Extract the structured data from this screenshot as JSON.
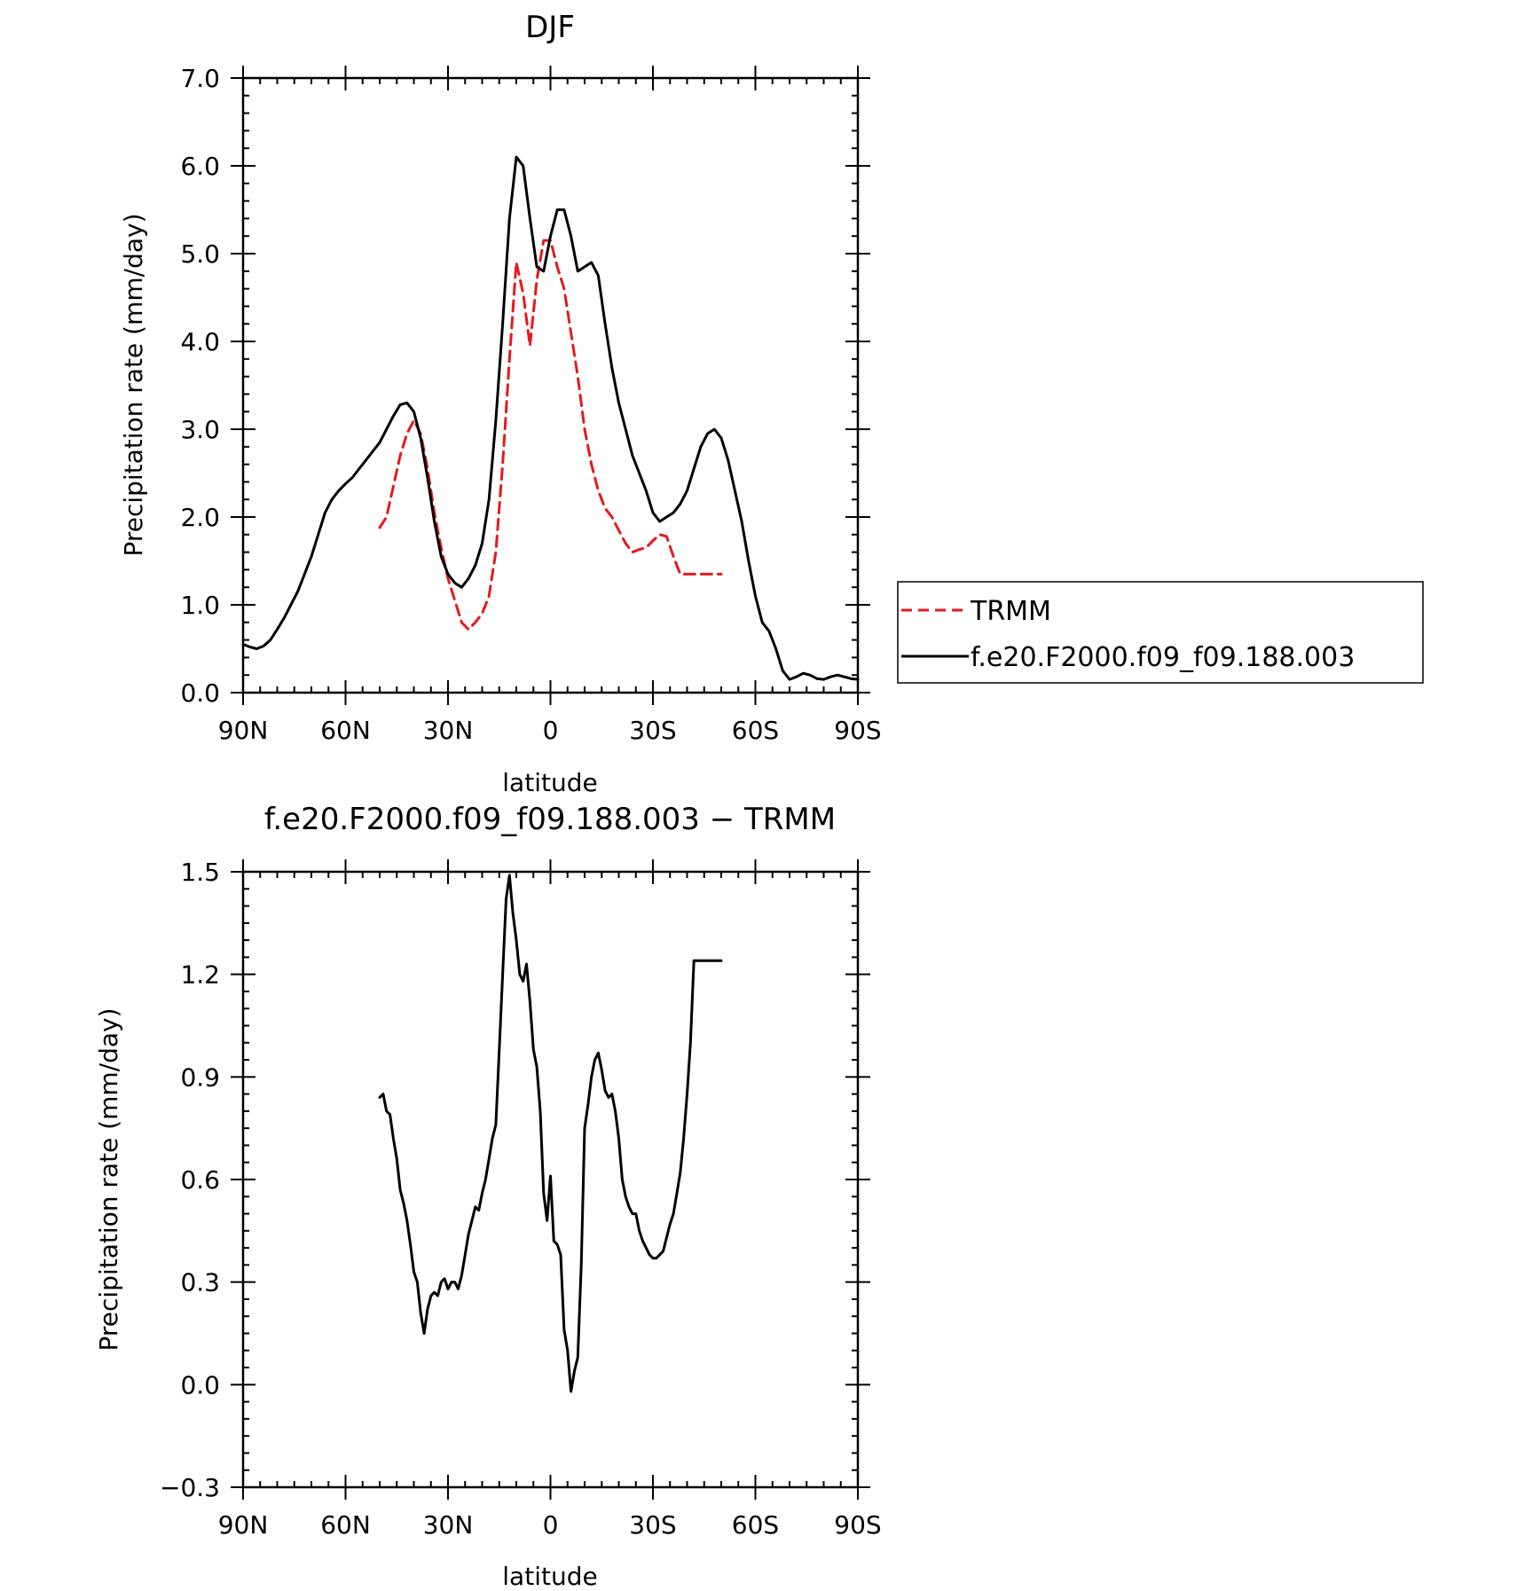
{
  "chart_data": [
    {
      "type": "line",
      "title": "DJF",
      "xlabel": "latitude",
      "ylabel": "Precipitation rate (mm/day)",
      "xlim": [
        90,
        -90
      ],
      "ylim": [
        0,
        7
      ],
      "x_ticks": [
        90,
        60,
        30,
        0,
        -30,
        -60,
        -90
      ],
      "x_tick_labels": [
        "90N",
        "60N",
        "30N",
        "0",
        "30S",
        "60S",
        "90S"
      ],
      "y_ticks": [
        0,
        1,
        2,
        3,
        4,
        5,
        6,
        7
      ],
      "y_tick_labels": [
        "0.0",
        "1.0",
        "2.0",
        "3.0",
        "4.0",
        "5.0",
        "6.0",
        "7.0"
      ],
      "legend_position": "right",
      "series": [
        {
          "name": "TRMM",
          "color": "#e41a1c",
          "dash": "dashed",
          "x": [
            50,
            48,
            46,
            44,
            42,
            40,
            38,
            36,
            34,
            32,
            30,
            28,
            26,
            24,
            22,
            20,
            18,
            16,
            14,
            12,
            10,
            8,
            6,
            4,
            2,
            0,
            -2,
            -4,
            -6,
            -8,
            -10,
            -12,
            -14,
            -16,
            -18,
            -20,
            -22,
            -24,
            -26,
            -28,
            -30,
            -32,
            -34,
            -36,
            -38,
            -40,
            -42,
            -44,
            -46,
            -48,
            -50
          ],
          "y": [
            1.88,
            2.0,
            2.35,
            2.7,
            2.95,
            3.1,
            2.95,
            2.55,
            2.05,
            1.65,
            1.3,
            1.05,
            0.8,
            0.72,
            0.8,
            0.9,
            1.1,
            1.6,
            2.6,
            3.8,
            4.9,
            4.55,
            3.95,
            4.7,
            5.15,
            5.15,
            4.85,
            4.6,
            4.1,
            3.6,
            3.0,
            2.6,
            2.3,
            2.1,
            2.0,
            1.85,
            1.7,
            1.6,
            1.63,
            1.65,
            1.73,
            1.8,
            1.78,
            1.55,
            1.35,
            1.35,
            1.35,
            1.35,
            1.35,
            1.35,
            1.35
          ]
        },
        {
          "name": "f.e20.F2000.f09_f09.188.003",
          "color": "#000000",
          "dash": "solid",
          "x": [
            90,
            88,
            86,
            84,
            82,
            80,
            78,
            76,
            74,
            72,
            70,
            68,
            66,
            64,
            62,
            60,
            58,
            56,
            54,
            52,
            50,
            48,
            46,
            44,
            42,
            40,
            38,
            36,
            34,
            32,
            30,
            28,
            26,
            24,
            22,
            20,
            18,
            16,
            14,
            12,
            10,
            8,
            6,
            4,
            2,
            0,
            -2,
            -4,
            -6,
            -8,
            -10,
            -12,
            -14,
            -16,
            -18,
            -20,
            -22,
            -24,
            -26,
            -28,
            -30,
            -32,
            -34,
            -36,
            -38,
            -40,
            -42,
            -44,
            -46,
            -48,
            -50,
            -52,
            -54,
            -56,
            -58,
            -60,
            -62,
            -64,
            -66,
            -68,
            -70,
            -72,
            -74,
            -76,
            -78,
            -80,
            -82,
            -84,
            -86,
            -88,
            -90
          ],
          "y": [
            0.55,
            0.52,
            0.5,
            0.53,
            0.6,
            0.72,
            0.85,
            1.0,
            1.15,
            1.35,
            1.55,
            1.8,
            2.05,
            2.2,
            2.3,
            2.38,
            2.45,
            2.55,
            2.65,
            2.75,
            2.85,
            3.0,
            3.15,
            3.28,
            3.3,
            3.2,
            2.9,
            2.45,
            1.95,
            1.55,
            1.35,
            1.25,
            1.2,
            1.3,
            1.45,
            1.7,
            2.2,
            3.1,
            4.2,
            5.4,
            6.1,
            6.0,
            5.4,
            4.85,
            4.8,
            5.2,
            5.5,
            5.5,
            5.2,
            4.8,
            4.85,
            4.9,
            4.75,
            4.2,
            3.7,
            3.3,
            3.0,
            2.7,
            2.5,
            2.3,
            2.05,
            1.95,
            2.0,
            2.05,
            2.15,
            2.3,
            2.55,
            2.8,
            2.95,
            3.0,
            2.9,
            2.65,
            2.3,
            1.95,
            1.5,
            1.1,
            0.8,
            0.7,
            0.5,
            0.25,
            0.15,
            0.18,
            0.22,
            0.2,
            0.16,
            0.15,
            0.18,
            0.2,
            0.18,
            0.16,
            0.15
          ]
        }
      ]
    },
    {
      "type": "line",
      "title": "f.e20.F2000.f09_f09.188.003 − TRMM",
      "xlabel": "latitude",
      "ylabel": "Precipitation rate (mm/day)",
      "xlim": [
        90,
        -90
      ],
      "ylim": [
        -0.3,
        1.5
      ],
      "x_ticks": [
        90,
        60,
        30,
        0,
        -30,
        -60,
        -90
      ],
      "x_tick_labels": [
        "90N",
        "60N",
        "30N",
        "0",
        "30S",
        "60S",
        "90S"
      ],
      "y_ticks": [
        -0.3,
        0.0,
        0.3,
        0.6,
        0.9,
        1.2,
        1.5
      ],
      "y_tick_labels": [
        "−0.3",
        "0.0",
        "0.3",
        "0.6",
        "0.9",
        "1.2",
        "1.5"
      ],
      "series": [
        {
          "color": "#000000",
          "dash": "solid",
          "x": [
            50,
            49,
            48,
            47,
            46,
            45,
            44,
            43,
            42,
            41,
            40,
            39,
            38,
            37,
            36,
            35,
            34,
            33,
            32,
            31,
            30,
            29,
            28,
            27,
            26,
            25,
            24,
            23,
            22,
            21,
            20,
            19,
            18,
            17,
            16,
            15,
            14,
            13,
            12,
            11,
            10,
            9,
            8,
            7,
            6,
            5,
            4,
            3,
            2,
            1,
            0,
            -1,
            -2,
            -3,
            -4,
            -5,
            -6,
            -7,
            -8,
            -9,
            -10,
            -11,
            -12,
            -13,
            -14,
            -15,
            -16,
            -17,
            -18,
            -19,
            -20,
            -21,
            -22,
            -23,
            -24,
            -25,
            -26,
            -27,
            -28,
            -29,
            -30,
            -31,
            -32,
            -33,
            -34,
            -35,
            -36,
            -37,
            -38,
            -39,
            -40,
            -41,
            -42,
            -43,
            -44,
            -45,
            -46,
            -47,
            -48,
            -49,
            -50
          ],
          "y": [
            0.84,
            0.85,
            0.8,
            0.79,
            0.72,
            0.66,
            0.57,
            0.53,
            0.48,
            0.41,
            0.33,
            0.3,
            0.21,
            0.15,
            0.22,
            0.26,
            0.27,
            0.26,
            0.3,
            0.31,
            0.28,
            0.3,
            0.3,
            0.28,
            0.32,
            0.38,
            0.44,
            0.48,
            0.52,
            0.51,
            0.56,
            0.6,
            0.66,
            0.72,
            0.76,
            0.98,
            1.2,
            1.42,
            1.49,
            1.38,
            1.3,
            1.2,
            1.18,
            1.23,
            1.12,
            0.98,
            0.93,
            0.8,
            0.56,
            0.48,
            0.61,
            0.42,
            0.41,
            0.38,
            0.16,
            0.1,
            -0.02,
            0.04,
            0.08,
            0.35,
            0.75,
            0.82,
            0.9,
            0.95,
            0.97,
            0.92,
            0.86,
            0.84,
            0.85,
            0.8,
            0.72,
            0.6,
            0.55,
            0.52,
            0.5,
            0.5,
            0.45,
            0.42,
            0.4,
            0.38,
            0.37,
            0.37,
            0.38,
            0.39,
            0.43,
            0.47,
            0.5,
            0.56,
            0.62,
            0.72,
            0.85,
            1.0,
            1.24,
            1.24,
            1.24,
            1.24,
            1.24,
            1.24,
            1.24,
            1.24,
            1.24
          ]
        }
      ]
    }
  ]
}
